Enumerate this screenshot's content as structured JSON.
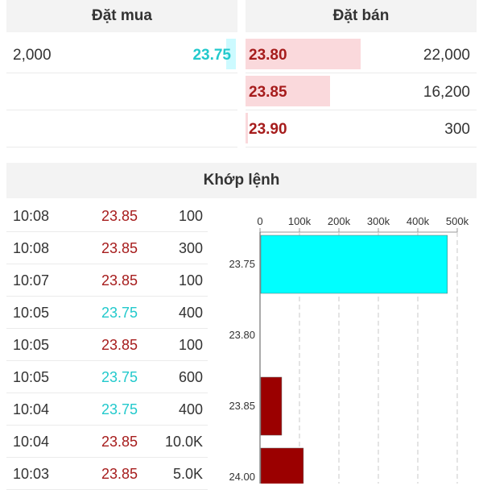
{
  "colors": {
    "buy": "#22c9cc",
    "sell": "#a61c1c",
    "bar_buy": "#00ffff",
    "bar_sell": "#9b0000",
    "sell_volume_bar": "#fad9dc",
    "buy_volume_bar": "#ccfaff"
  },
  "order_book": {
    "buy_title": "Đặt mua",
    "sell_title": "Đặt bán",
    "buy": [
      {
        "volume": "2,000",
        "price": "23.75"
      }
    ],
    "sell": [
      {
        "price": "23.80",
        "volume": "22,000"
      },
      {
        "price": "23.85",
        "volume": "16,200"
      },
      {
        "price": "23.90",
        "volume": "300"
      }
    ]
  },
  "matched": {
    "title": "Khớp lệnh",
    "trades": [
      {
        "time": "10:08",
        "price": "23.85",
        "volume": "100",
        "side": "sell"
      },
      {
        "time": "10:08",
        "price": "23.85",
        "volume": "300",
        "side": "sell"
      },
      {
        "time": "10:07",
        "price": "23.85",
        "volume": "100",
        "side": "sell"
      },
      {
        "time": "10:05",
        "price": "23.75",
        "volume": "400",
        "side": "buy"
      },
      {
        "time": "10:05",
        "price": "23.85",
        "volume": "100",
        "side": "sell"
      },
      {
        "time": "10:05",
        "price": "23.75",
        "volume": "600",
        "side": "buy"
      },
      {
        "time": "10:04",
        "price": "23.75",
        "volume": "400",
        "side": "buy"
      },
      {
        "time": "10:04",
        "price": "23.85",
        "volume": "10.0K",
        "side": "sell"
      },
      {
        "time": "10:03",
        "price": "23.85",
        "volume": "5.0K",
        "side": "sell"
      }
    ]
  },
  "chart_data": {
    "type": "bar",
    "orientation": "horizontal",
    "categories": [
      "23.75",
      "23.80",
      "23.85",
      "24.00"
    ],
    "values": [
      475000,
      0,
      55000,
      110000
    ],
    "bar_sides": [
      "buy",
      "none",
      "sell",
      "sell"
    ],
    "xlim": [
      0,
      500000
    ],
    "xticks": [
      "0",
      "100k",
      "200k",
      "300k",
      "400k",
      "500k"
    ],
    "grid": "vertical dashed"
  }
}
